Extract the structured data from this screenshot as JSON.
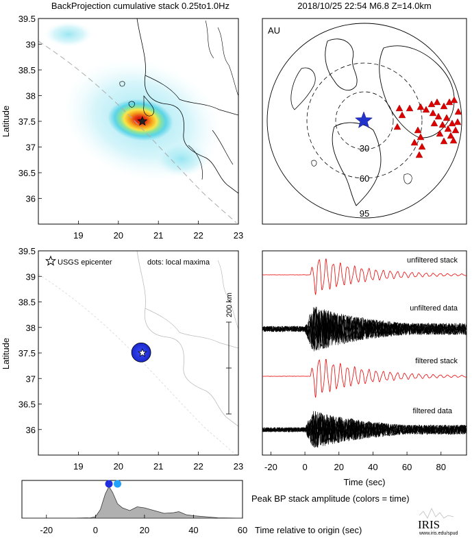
{
  "header": {
    "title_left": "BackProjection cumulative stack 0.25to1.0Hz",
    "title_right": "2018/10/25 22:54   M6.8  Z=14.0km"
  },
  "colors": {
    "epicenter_star": "#2233cc",
    "station_triangles": "#dd0000",
    "unfiltered_stack": "#ee0000",
    "filtered_stack": "#ee0000",
    "data_traces": "#000000",
    "hotspot_core": "#d7191c",
    "hotspot_mid": "#fdd835",
    "hotspot_outer": "#5ad6e6",
    "amplitude_fill": "#aaaaaa",
    "maxima_dot_1": "#1f2fe0",
    "maxima_dot_2": "#22a2ff"
  },
  "chart_data": [
    {
      "type": "heatmap",
      "name": "backprojection-map",
      "ylabel": "Latitude",
      "xlabel": "",
      "xlim": [
        18.0,
        23.0
      ],
      "ylim": [
        35.5,
        39.5
      ],
      "xticks": [
        19,
        20,
        21,
        22,
        23
      ],
      "yticks": [
        36,
        36.5,
        37,
        37.5,
        38,
        38.5,
        39,
        39.5
      ],
      "epicenter": {
        "lon": 20.6,
        "lat": 37.5
      },
      "peak": {
        "lon": 20.55,
        "lat": 37.52
      }
    },
    {
      "type": "scatter",
      "name": "station-map",
      "corner_label": "AU",
      "ring_labels": [
        "30",
        "60",
        "95"
      ],
      "epicenter_symbol": "star"
    },
    {
      "type": "scatter",
      "name": "local-maxima-map",
      "ylabel": "Latitude",
      "xlim": [
        18.0,
        23.0
      ],
      "ylim": [
        35.5,
        39.5
      ],
      "xticks": [
        19,
        20,
        21,
        22,
        23
      ],
      "yticks": [
        36,
        36.5,
        37,
        37.5,
        38,
        38.5,
        39,
        39.5
      ],
      "legend_epicenter": "USGS epicenter",
      "legend_dots": "dots: local maxima",
      "scale_label": "200 km",
      "maxima": [
        {
          "lon": 20.57,
          "lat": 37.51
        }
      ]
    },
    {
      "type": "line",
      "name": "seismograms",
      "xlabel": "Time (sec)",
      "xlim": [
        -25,
        95
      ],
      "xticks": [
        -20,
        0,
        20,
        40,
        60,
        80
      ],
      "series": [
        {
          "name": "unfiltered stack"
        },
        {
          "name": "unfiltered data"
        },
        {
          "name": "filtered stack"
        },
        {
          "name": "filtered data"
        }
      ]
    },
    {
      "type": "area",
      "name": "peak-amplitude",
      "title": "Peak BP stack amplitude (colors = time)",
      "xlabel": "Time relative to origin (sec)",
      "xlim": [
        -30,
        60
      ],
      "xticks": [
        -20,
        0,
        20,
        40,
        60
      ],
      "x": [
        -30,
        -10,
        -2,
        0,
        2,
        4,
        5.5,
        7,
        9,
        11,
        14,
        17,
        20,
        24,
        28,
        32,
        34,
        37,
        40,
        45,
        50,
        60
      ],
      "y": [
        0,
        0,
        0.01,
        0.04,
        0.25,
        0.7,
        0.92,
        0.75,
        0.42,
        0.3,
        0.22,
        0.33,
        0.3,
        0.22,
        0.14,
        0.16,
        0.19,
        0.1,
        0.07,
        0.04,
        0.01,
        0
      ],
      "maxima_times": [
        5.5,
        9.0
      ]
    }
  ],
  "footer": {
    "logo_text": "IRIS",
    "logo_url_text": "www.iris.edu/spud"
  }
}
